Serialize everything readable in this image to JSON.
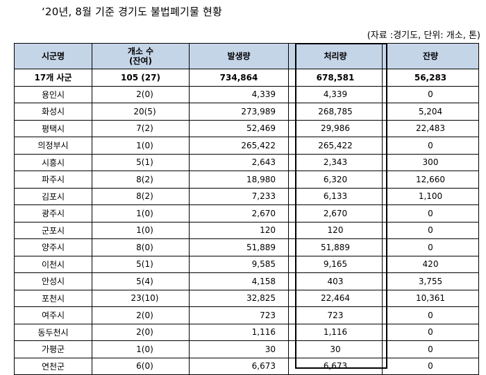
{
  "title": "‘20년, 8월 기준 경기도 불법폐기물 현황",
  "note": "(자료 :경기도, 단위: 개소, 톤)",
  "headers": {
    "region": "시군명",
    "count_line1": "개소 수",
    "count_line2": "(잔여)",
    "generated": "발생량",
    "processed": "처리량",
    "remaining": "잔량"
  },
  "total": {
    "region": "17개 사군",
    "count": "105 (27)",
    "generated": "734,864",
    "processed": "678,581",
    "remaining": "56,283"
  },
  "rows": [
    {
      "region": "용인시",
      "count": "2(0)",
      "generated": "4,339",
      "processed": "4,339",
      "remaining": "0"
    },
    {
      "region": "화성시",
      "count": "20(5)",
      "generated": "273,989",
      "processed": "268,785",
      "remaining": "5,204"
    },
    {
      "region": "평택시",
      "count": "7(2)",
      "generated": "52,469",
      "processed": "29,986",
      "remaining": "22,483"
    },
    {
      "region": "의정부시",
      "count": "1(0)",
      "generated": "265,422",
      "processed": "265,422",
      "remaining": "0"
    },
    {
      "region": "시흥시",
      "count": "5(1)",
      "generated": "2,643",
      "processed": "2,343",
      "remaining": "300"
    },
    {
      "region": "파주시",
      "count": "8(2)",
      "generated": "18,980",
      "processed": "6,320",
      "remaining": "12,660"
    },
    {
      "region": "김포시",
      "count": "8(2)",
      "generated": "7,233",
      "processed": "6,133",
      "remaining": "1,100"
    },
    {
      "region": "광주시",
      "count": "1(0)",
      "generated": "2,670",
      "processed": "2,670",
      "remaining": "0"
    },
    {
      "region": "군포시",
      "count": "1(0)",
      "generated": "120",
      "processed": "120",
      "remaining": "0"
    },
    {
      "region": "양주시",
      "count": "8(0)",
      "generated": "51,889",
      "processed": "51,889",
      "remaining": "0"
    },
    {
      "region": "이천시",
      "count": "5(1)",
      "generated": "9,585",
      "processed": "9,165",
      "remaining": "420"
    },
    {
      "region": "안성시",
      "count": "5(4)",
      "generated": "4,158",
      "processed": "403",
      "remaining": "3,755"
    },
    {
      "region": "포천시",
      "count": "23(10)",
      "generated": "32,825",
      "processed": "22,464",
      "remaining": "10,361"
    },
    {
      "region": "여주시",
      "count": "2(0)",
      "generated": "723",
      "processed": "723",
      "remaining": "0"
    },
    {
      "region": "동두천시",
      "count": "2(0)",
      "generated": "1,116",
      "processed": "1,116",
      "remaining": "0"
    },
    {
      "region": "가평군",
      "count": "1(0)",
      "generated": "30",
      "processed": "30",
      "remaining": "0"
    },
    {
      "region": "연천군",
      "count": "6(0)",
      "generated": "6,673",
      "processed": "6,673",
      "remaining": "0"
    }
  ]
}
